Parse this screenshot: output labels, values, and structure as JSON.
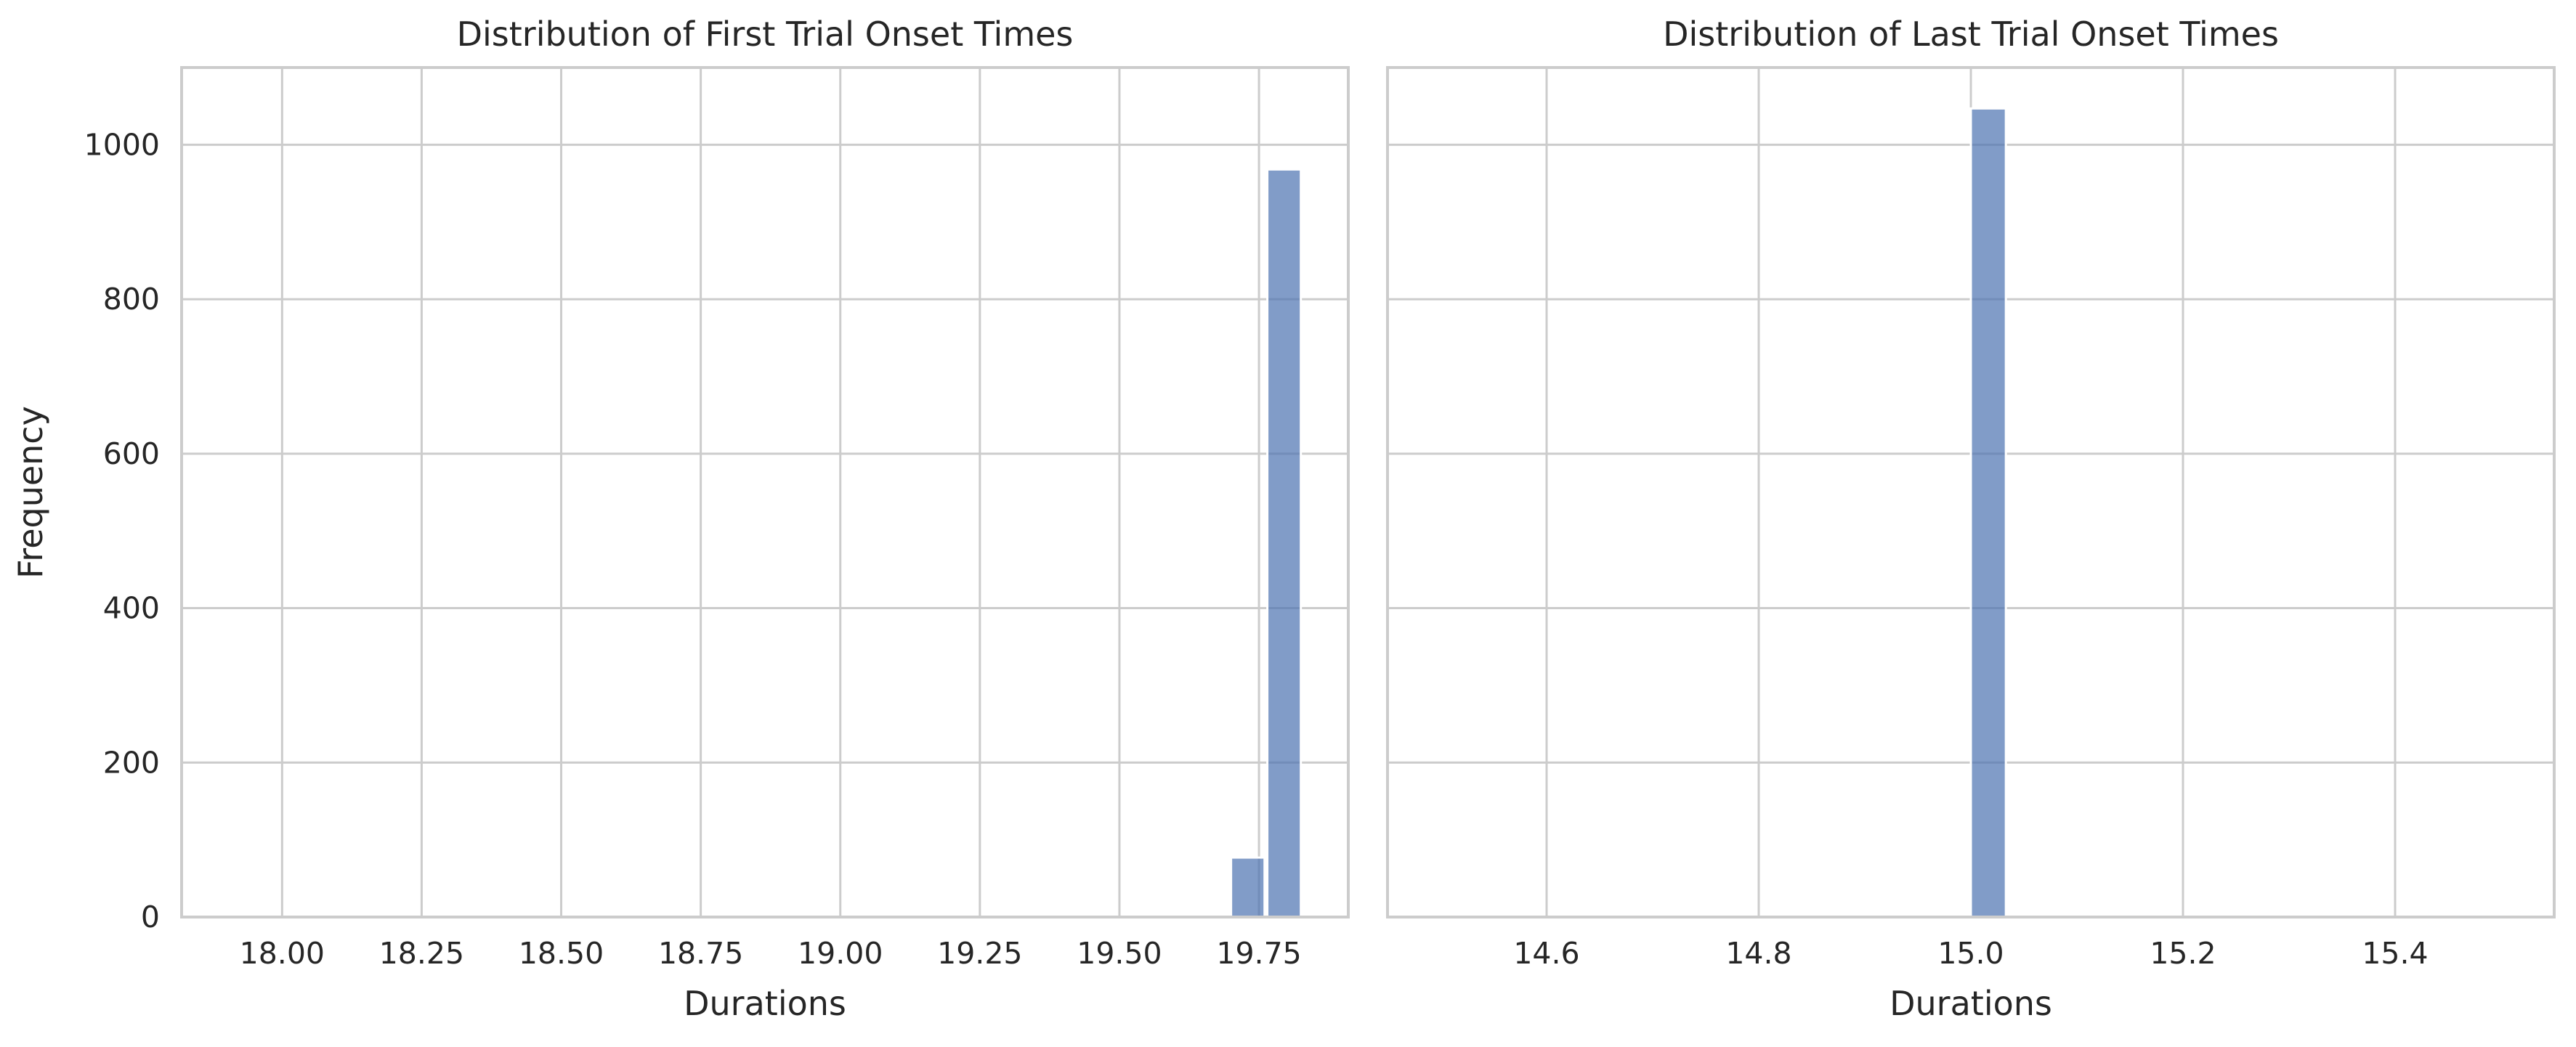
{
  "chart_data": [
    {
      "type": "bar",
      "title": "Distribution of First Trial Onset Times",
      "xlabel": "Durations",
      "ylabel": "Frequency",
      "xlim": [
        17.82,
        19.91
      ],
      "ylim": [
        0,
        1100
      ],
      "xticks": [
        18.0,
        18.25,
        18.5,
        18.75,
        19.0,
        19.25,
        19.5,
        19.75
      ],
      "xtick_labels": [
        "18.00",
        "18.25",
        "18.50",
        "18.75",
        "19.00",
        "19.25",
        "19.50",
        "19.75"
      ],
      "yticks": [
        0,
        200,
        400,
        600,
        800,
        1000
      ],
      "ytick_labels": [
        "0",
        "200",
        "400",
        "600",
        "800",
        "1000"
      ],
      "grid": true,
      "color": "#4c72b0",
      "bars": [
        {
          "x0": 19.7,
          "x1": 19.76,
          "value": 77
        },
        {
          "x0": 19.765,
          "x1": 19.825,
          "value": 968
        }
      ]
    },
    {
      "type": "bar",
      "title": "Distribution of Last Trial Onset Times",
      "xlabel": "Durations",
      "ylabel": "",
      "xlim": [
        14.45,
        15.55
      ],
      "ylim": [
        0,
        1100
      ],
      "xticks": [
        14.6,
        14.8,
        15.0,
        15.2,
        15.4
      ],
      "xtick_labels": [
        "14.6",
        "14.8",
        "15.0",
        "15.2",
        "15.4"
      ],
      "yticks": [
        0,
        200,
        400,
        600,
        800,
        1000
      ],
      "ytick_labels": [],
      "grid": true,
      "color": "#4c72b0",
      "bars": [
        {
          "x0": 15.0,
          "x1": 15.033,
          "value": 1047
        }
      ]
    }
  ]
}
